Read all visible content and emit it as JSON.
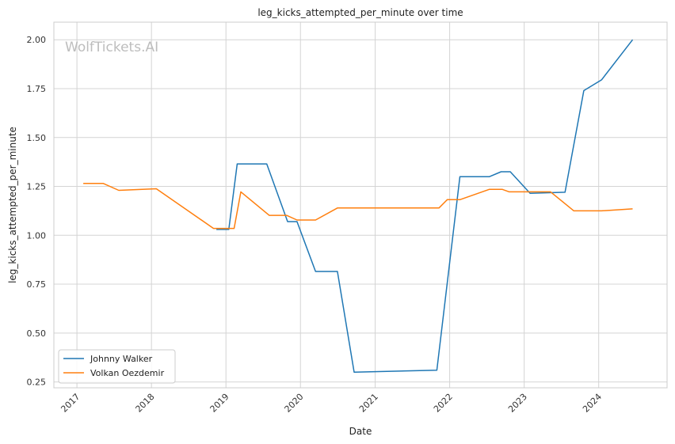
{
  "chart_data": {
    "type": "line",
    "title": "leg_kicks_attempted_per_minute over time",
    "xlabel": "Date",
    "ylabel": "leg_kicks_attempted_per_minute",
    "watermark": "WolfTickets.AI",
    "xlim": [
      "2016-09-10",
      "2024-12-01"
    ],
    "ylim": [
      0.22,
      2.09
    ],
    "x_ticks": [
      "2017",
      "2018",
      "2019",
      "2020",
      "2021",
      "2022",
      "2023",
      "2024"
    ],
    "y_ticks": [
      "0.25",
      "0.50",
      "0.75",
      "1.00",
      "1.25",
      "1.50",
      "1.75",
      "2.00"
    ],
    "grid": true,
    "legend_position": "lower-left",
    "series": [
      {
        "name": "Johnny Walker",
        "color": "#1f77b4",
        "points": [
          [
            "2018-11-15",
            1.03
          ],
          [
            "2019-01-15",
            1.03
          ],
          [
            "2019-02-25",
            1.365
          ],
          [
            "2019-07-20",
            1.365
          ],
          [
            "2019-10-30",
            1.07
          ],
          [
            "2019-12-15",
            1.07
          ],
          [
            "2020-03-15",
            0.815
          ],
          [
            "2020-06-30",
            0.815
          ],
          [
            "2020-09-20",
            0.3
          ],
          [
            "2021-10-30",
            0.31
          ],
          [
            "2022-02-20",
            1.3
          ],
          [
            "2022-07-15",
            1.3
          ],
          [
            "2022-09-10",
            1.325
          ],
          [
            "2022-10-25",
            1.325
          ],
          [
            "2023-01-30",
            1.215
          ],
          [
            "2023-07-20",
            1.22
          ],
          [
            "2023-10-20",
            1.74
          ],
          [
            "2024-01-15",
            1.795
          ],
          [
            "2024-06-15",
            2.0
          ]
        ]
      },
      {
        "name": "Volkan Oezdemir",
        "color": "#ff7f0e",
        "points": [
          [
            "2017-02-01",
            1.265
          ],
          [
            "2017-05-10",
            1.265
          ],
          [
            "2017-07-25",
            1.23
          ],
          [
            "2018-01-25",
            1.238
          ],
          [
            "2018-11-01",
            1.035
          ],
          [
            "2019-02-10",
            1.035
          ],
          [
            "2019-03-15",
            1.222
          ],
          [
            "2019-08-01",
            1.102
          ],
          [
            "2019-10-25",
            1.102
          ],
          [
            "2019-12-15",
            1.078
          ],
          [
            "2020-03-15",
            1.078
          ],
          [
            "2020-07-01",
            1.14
          ],
          [
            "2021-11-10",
            1.14
          ],
          [
            "2021-12-20",
            1.182
          ],
          [
            "2022-02-20",
            1.182
          ],
          [
            "2022-07-15",
            1.235
          ],
          [
            "2022-09-15",
            1.235
          ],
          [
            "2022-10-20",
            1.222
          ],
          [
            "2023-01-20",
            1.222
          ],
          [
            "2023-05-10",
            1.222
          ],
          [
            "2023-09-01",
            1.125
          ],
          [
            "2024-01-15",
            1.125
          ],
          [
            "2024-06-15",
            1.135
          ]
        ]
      }
    ]
  }
}
